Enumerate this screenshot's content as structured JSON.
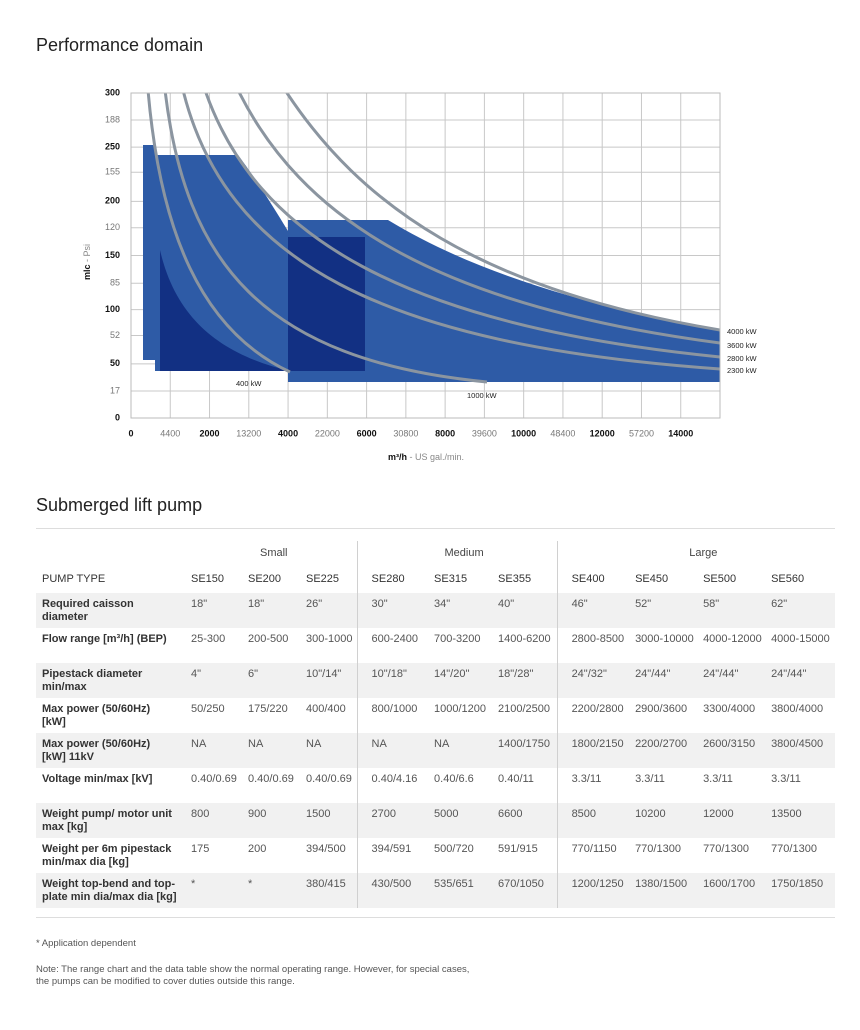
{
  "chart_title": "Performance domain",
  "chart": {
    "y_label": "mlc",
    "y2_label": "- Psi",
    "x_label": "m³/h",
    "x2_label": "- US gal./min.",
    "xlim": [
      0,
      15000
    ],
    "x2lim": [
      0,
      66000
    ],
    "ylim": [
      0,
      300
    ],
    "y2lim": [
      0,
      205
    ],
    "xticks": [
      0,
      2000,
      4000,
      6000,
      8000,
      10000,
      12000,
      14000
    ],
    "x2ticks": [
      4400,
      13200,
      22000,
      30800,
      39600,
      48400,
      57200
    ],
    "yticks": [
      0,
      50,
      100,
      150,
      200,
      250,
      300
    ],
    "y2ticks": [
      17,
      52,
      85,
      120,
      155,
      188
    ],
    "curve_labels": [
      "400 kW",
      "1000 kW",
      "4000 kW",
      "3600 kW",
      "2800 kW",
      "2300 kW"
    ]
  },
  "table_title": "Submerged lift pump",
  "table": {
    "groups": [
      "Small",
      "Medium",
      "Large"
    ],
    "header": [
      "PUMP TYPE",
      "SE150",
      "SE200",
      "SE225",
      "SE280",
      "SE315",
      "SE355",
      "SE400",
      "SE450",
      "SE500",
      "SE560"
    ],
    "rows": [
      [
        "Required caisson diameter",
        "18\"",
        "18\"",
        "26\"",
        "30\"",
        "34\"",
        "40\"",
        "46\"",
        "52\"",
        "58\"",
        "62\""
      ],
      [
        "Flow range [m³/h] (BEP)",
        "25-300",
        "200-500",
        "300-1000",
        "600-2400",
        "700-3200",
        "1400-6200",
        "2800-8500",
        "3000-10000",
        "4000-12000",
        "4000-15000"
      ],
      [
        "Pipestack diameter min/max",
        "4\"",
        "6\"",
        "10\"/14\"",
        "10\"/18\"",
        "14\"/20\"",
        "18\"/28\"",
        "24\"/32\"",
        "24\"/44\"",
        "24\"/44\"",
        "24\"/44\""
      ],
      [
        "Max power (50/60Hz) [kW]",
        "50/250",
        "175/220",
        "400/400",
        "800/1000",
        "1000/1200",
        "2100/2500",
        "2200/2800",
        "2900/3600",
        "3300/4000",
        "3800/4000"
      ],
      [
        "Max power (50/60Hz) [kW] 11kV",
        "NA",
        "NA",
        "NA",
        "NA",
        "NA",
        "1400/1750",
        "1800/2150",
        "2200/2700",
        "2600/3150",
        "3800/4500"
      ],
      [
        "Voltage min/max [kV]",
        "0.40/0.69",
        "0.40/0.69",
        "0.40/0.69",
        "0.40/4.16",
        "0.40/6.6",
        "0.40/11",
        "3.3/11",
        "3.3/11",
        "3.3/11",
        "3.3/11"
      ],
      [
        "Weight pump/ motor unit max [kg]",
        "800",
        "900",
        "1500",
        "2700",
        "5000",
        "6600",
        "8500",
        "10200",
        "12000",
        "13500"
      ],
      [
        "Weight per 6m pipestack min/max dia [kg]",
        "175",
        "200",
        "394/500",
        "394/591",
        "500/720",
        "591/915",
        "770/1150",
        "770/1300",
        "770/1300",
        "770/1300"
      ],
      [
        "Weight top-bend and top-plate min dia/max dia [kg]",
        "*",
        "*",
        "380/415",
        "430/500",
        "535/651",
        "670/1050",
        "1200/1250",
        "1380/1500",
        "1600/1700",
        "1750/1850"
      ]
    ]
  },
  "footnote": "* Application dependent",
  "note": [
    "Note: The range chart and the data table show the normal operating range. However, for special cases,",
    "the pumps can be modified to cover duties outside this range."
  ]
}
